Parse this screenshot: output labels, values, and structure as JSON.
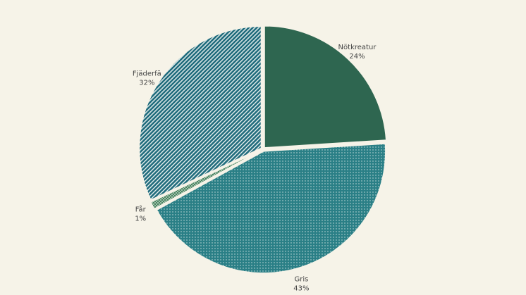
{
  "chart_data": {
    "type": "pie",
    "categories": [
      "Nötkreatur",
      "Gris",
      "Får",
      "Fjäderfä"
    ],
    "values": [
      24,
      43,
      1,
      32
    ],
    "value_labels": [
      "24%",
      "43%",
      "1%",
      "32%"
    ],
    "colors": [
      "#2e6650",
      "#2a7f86",
      "#3d7a55",
      "#1f6b7c"
    ],
    "fill_styles": [
      "solid",
      "dots",
      "crosshatch",
      "stripes"
    ]
  }
}
